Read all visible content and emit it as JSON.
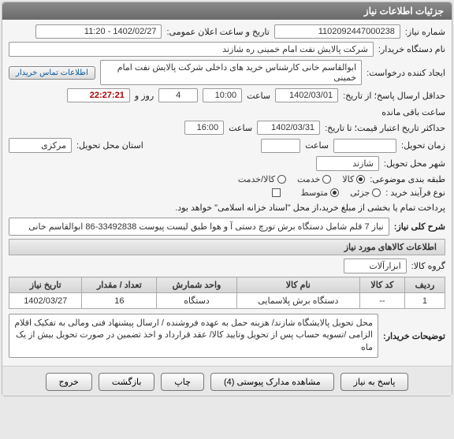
{
  "panel_title": "جزئیات اطلاعات نیاز",
  "labels": {
    "need_no": "شماره نیاز:",
    "announce_dt": "تاریخ و ساعت اعلان عمومی:",
    "buyer_org": "نام دستگاه خریدار:",
    "requester": "ایجاد کننده درخواست:",
    "contact_btn": "اطلاعات تماس خریدار",
    "deadline_from": "حداقل ارسال پاسخ؛ از تاریخ:",
    "time_lbl": "ساعت",
    "day_and": "روز و",
    "time_left": "ساعت باقی مانده",
    "deadline_to": "حداکثر تاریخ اعتبار قیمت؛ تا تاریخ:",
    "delivery_dt": "زمان تحویل:",
    "delivery_province": "استان محل تحویل:",
    "delivery_city": "شهر محل تحویل:",
    "category": "طبقه بندی موضوعی:",
    "purchase_type": "نوع فرآیند خرید :",
    "payment_note": "پرداخت تمام یا بخشی از مبلغ خرید،از محل \"اسناد خزانه اسلامی\" خواهد بود.",
    "need_desc": "شرح کلی نیاز:",
    "items_header": "اطلاعات کالاهای مورد نیاز",
    "goods_group": "گروه کالا:",
    "buyer_notes": "توضیحات خریدار:"
  },
  "values": {
    "need_no": "1102092447000238",
    "announce_dt": "1402/02/27 - 11:20",
    "buyer_org": "شرکت پالایش نفت امام خمینی  ره  شازند",
    "requester": "ابوالقاسم  خانی  کارشناس خرید های داخلی  شرکت پالایش نفت امام خمینی",
    "deadline_from_date": "1402/03/01",
    "deadline_from_time": "10:00",
    "days_left": "4",
    "hours_left": "22:27:21",
    "deadline_to_date": "1402/03/31",
    "deadline_to_time": "16:00",
    "province": "مرکزی",
    "city": "شازند",
    "goods_group": "ابزارآلات",
    "need_desc": "نیاز 7 قلم شامل دستگاه برش تورچ دستی آ و هوا طبق لیست پیوست 33492838-86 ابوالقاسم خانی",
    "buyer_notes": "محل تحویل پالایشگاه شازند/ هزینه حمل به عهده فروشنده / ارسال پیشنهاد فنی ومالی به تفکیک اقلام الزامی /تسویه حساب پس از تحویل وتایید کالا/ عقد قرارداد و اخذ تضمین در صورت تحویل بیش از یک ماه"
  },
  "category_options": {
    "goods": "کالا",
    "service": "خدمت",
    "both": "کالا/خدمت",
    "selected": "goods"
  },
  "purchase_options": {
    "partial": "جزئی",
    "medium": "متوسط",
    "selected": "medium"
  },
  "table": {
    "headers": {
      "row": "ردیف",
      "code": "کد کالا",
      "name": "نام کالا",
      "unit": "واحد شمارش",
      "qty": "تعداد / مقدار",
      "date": "تاریخ نیاز"
    },
    "rows": [
      {
        "row": "1",
        "code": "--",
        "name": "دستگاه برش پلاسمایی",
        "unit": "دستگاه",
        "qty": "16",
        "date": "1402/03/27"
      }
    ]
  },
  "buttons": {
    "reply": "پاسخ به نیاز",
    "attachments": "مشاهده مدارک پیوستی (4)",
    "print": "چاپ",
    "back": "بازگشت",
    "exit": "خروج"
  }
}
